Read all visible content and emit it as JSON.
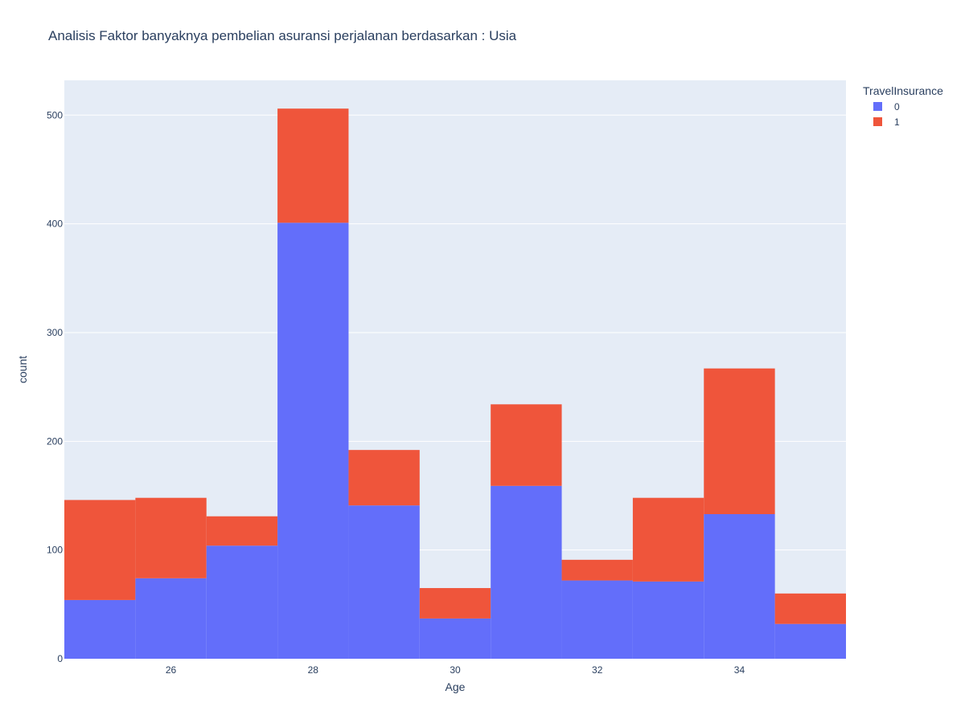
{
  "chart_data": {
    "type": "bar",
    "barmode": "stack",
    "title": "Analisis Faktor banyaknya pembelian asuransi perjalanan berdasarkan : Usia",
    "xlabel": "Age",
    "ylabel": "count",
    "x": [
      25,
      26,
      27,
      28,
      29,
      30,
      31,
      32,
      33,
      34,
      35
    ],
    "xlim": [
      24.5,
      35.5
    ],
    "ylim": [
      0,
      532
    ],
    "x_ticks": [
      26,
      28,
      30,
      32,
      34
    ],
    "y_ticks": [
      0,
      100,
      200,
      300,
      400,
      500
    ],
    "grid": true,
    "legend_title": "TravelInsurance",
    "legend_position": "top-right",
    "series": [
      {
        "name": "0",
        "color": "#636efa",
        "values": [
          54,
          74,
          104,
          401,
          141,
          37,
          159,
          72,
          71,
          133,
          32
        ]
      },
      {
        "name": "1",
        "color": "#ef553b",
        "values": [
          92,
          74,
          27,
          105,
          51,
          28,
          75,
          19,
          77,
          134,
          28
        ]
      }
    ],
    "plot_background": "#e5ecf6"
  }
}
